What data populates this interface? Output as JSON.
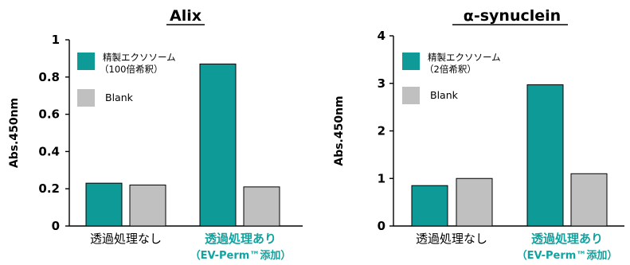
{
  "colors": {
    "sample": "#0e9a96",
    "blank": "#c0c0c0",
    "label_teal": "#11a3a0",
    "axis": "#000000"
  },
  "chart_data": [
    {
      "type": "bar",
      "title": "Alix",
      "ylabel": "Abs.450nm",
      "ylim": [
        0,
        1
      ],
      "yticks": [
        "0",
        "0.2",
        "0.4",
        "0.6",
        "0.8",
        "1"
      ],
      "categories": [
        {
          "label": "透過処理なし",
          "sublabel": ""
        },
        {
          "label": "透過処理あり",
          "sublabel": "（EV-Perm™添加）"
        }
      ],
      "series": [
        {
          "name": "精製エクソソーム",
          "name_line2": "（100倍希釈）",
          "values": [
            0.23,
            0.87
          ]
        },
        {
          "name": "Blank",
          "name_line2": "",
          "values": [
            0.22,
            0.21
          ]
        }
      ]
    },
    {
      "type": "bar",
      "title": "α-synuclein",
      "ylabel": "Abs.450nm",
      "ylim": [
        0,
        4
      ],
      "yticks": [
        "0",
        "1",
        "2",
        "3",
        "4"
      ],
      "categories": [
        {
          "label": "透過処理なし",
          "sublabel": ""
        },
        {
          "label": "透過処理あり",
          "sublabel": "（EV-Perm™添加）"
        }
      ],
      "series": [
        {
          "name": "精製エクソソーム",
          "name_line2": "（2倍希釈）",
          "values": [
            0.85,
            2.97
          ]
        },
        {
          "name": "Blank",
          "name_line2": "",
          "values": [
            1.0,
            1.1
          ]
        }
      ]
    }
  ]
}
